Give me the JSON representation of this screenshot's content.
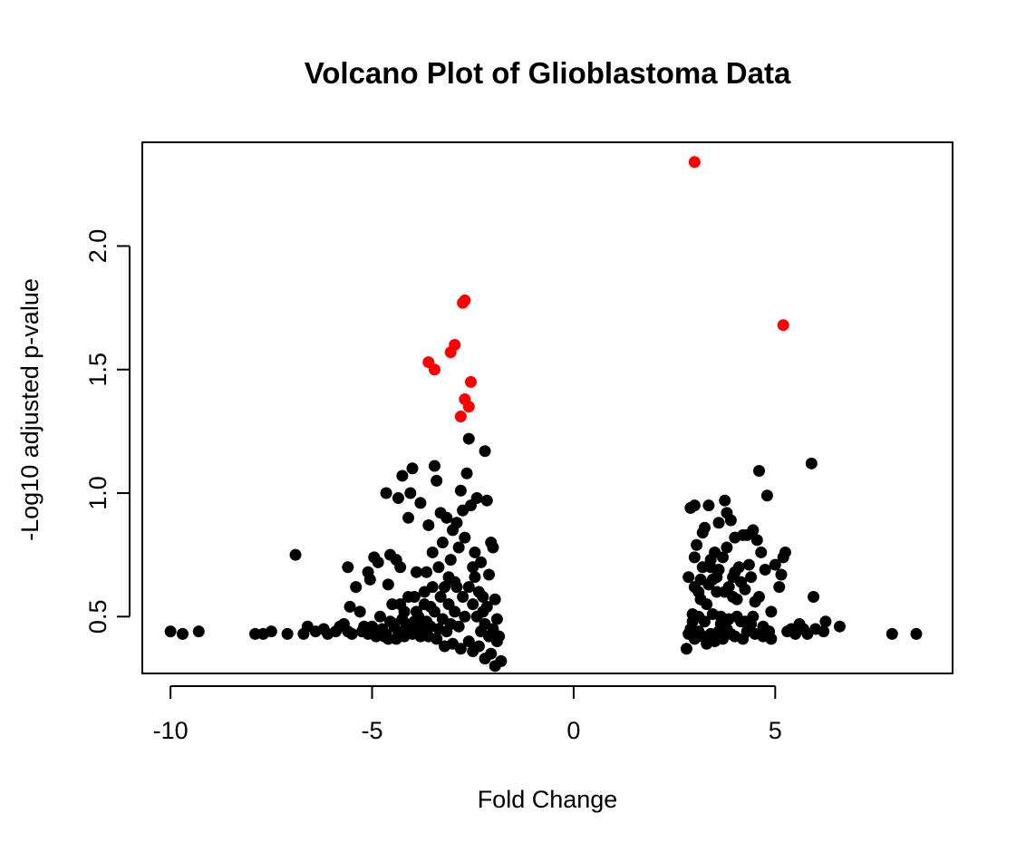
{
  "chart_data": {
    "type": "scatter",
    "title": "Volcano Plot of Glioblastoma Data",
    "xlabel": "Fold Change",
    "ylabel": "-Log10 adjusted p-value",
    "xlim": [
      -10.7,
      9.4
    ],
    "ylim": [
      0.27,
      2.42
    ],
    "xticks": [
      -10,
      -5,
      0,
      5
    ],
    "xtick_labels": [
      "-10",
      "-5",
      "0",
      "5"
    ],
    "yticks": [
      0.5,
      1.0,
      1.5,
      2.0
    ],
    "ytick_labels": [
      "0.5",
      "1.0",
      "1.5",
      "2.0"
    ],
    "grid": false,
    "legend": "none",
    "colors": {
      "significant": "#ff0000",
      "not_significant": "#000000"
    },
    "series": [
      {
        "color": "#ff0000",
        "points": [
          [
            3.0,
            2.34
          ],
          [
            5.2,
            1.68
          ],
          [
            -2.7,
            1.78
          ],
          [
            -2.75,
            1.77
          ],
          [
            -2.95,
            1.6
          ],
          [
            -3.05,
            1.57
          ],
          [
            -3.6,
            1.53
          ],
          [
            -3.45,
            1.5
          ],
          [
            -2.55,
            1.45
          ],
          [
            -2.7,
            1.38
          ],
          [
            -2.6,
            1.35
          ],
          [
            -2.8,
            1.31
          ]
        ]
      },
      {
        "color": "#000000",
        "points": [
          [
            -10.0,
            0.44
          ],
          [
            -9.7,
            0.43
          ],
          [
            -9.3,
            0.44
          ],
          [
            -7.9,
            0.43
          ],
          [
            -7.7,
            0.43
          ],
          [
            -7.5,
            0.44
          ],
          [
            -7.1,
            0.43
          ],
          [
            -6.9,
            0.75
          ],
          [
            -6.7,
            0.43
          ],
          [
            -6.6,
            0.46
          ],
          [
            -6.4,
            0.44
          ],
          [
            -6.2,
            0.45
          ],
          [
            -6.1,
            0.43
          ],
          [
            -5.9,
            0.44
          ],
          [
            -5.8,
            0.46
          ],
          [
            -5.7,
            0.47
          ],
          [
            -5.6,
            0.44
          ],
          [
            -5.5,
            0.43
          ],
          [
            -5.55,
            0.54
          ],
          [
            -5.6,
            0.7
          ],
          [
            -5.4,
            0.62
          ],
          [
            -5.3,
            0.52
          ],
          [
            -5.2,
            0.46
          ],
          [
            -5.1,
            0.68
          ],
          [
            -5.05,
            0.65
          ],
          [
            -4.95,
            0.74
          ],
          [
            -4.85,
            0.72
          ],
          [
            -4.8,
            0.5
          ],
          [
            -4.75,
            0.45
          ],
          [
            -4.7,
            0.42
          ],
          [
            -4.65,
            1.0
          ],
          [
            -4.6,
            0.63
          ],
          [
            -4.55,
            0.75
          ],
          [
            -4.5,
            0.55
          ],
          [
            -4.45,
            0.47
          ],
          [
            -4.4,
            0.73
          ],
          [
            -4.35,
            0.98
          ],
          [
            -4.3,
            0.7
          ],
          [
            -4.25,
            1.07
          ],
          [
            -4.2,
            0.52
          ],
          [
            -4.15,
            0.44
          ],
          [
            -4.1,
            0.9
          ],
          [
            -4.05,
            1.0
          ],
          [
            -4.0,
            1.1
          ],
          [
            -3.95,
            0.58
          ],
          [
            -3.9,
            0.68
          ],
          [
            -3.85,
            0.5
          ],
          [
            -3.8,
            0.96
          ],
          [
            -3.75,
            0.45
          ],
          [
            -3.7,
            0.6
          ],
          [
            -3.65,
            0.68
          ],
          [
            -3.6,
            0.87
          ],
          [
            -3.55,
            0.54
          ],
          [
            -3.5,
            0.76
          ],
          [
            -3.45,
            1.11
          ],
          [
            -3.4,
            1.05
          ],
          [
            -3.35,
            0.7
          ],
          [
            -3.3,
            0.92
          ],
          [
            -3.25,
            0.8
          ],
          [
            -3.2,
            0.62
          ],
          [
            -3.15,
            0.9
          ],
          [
            -3.1,
            0.55
          ],
          [
            -3.05,
            0.73
          ],
          [
            -3.0,
            0.85
          ],
          [
            -2.95,
            0.64
          ],
          [
            -2.9,
            0.88
          ],
          [
            -2.85,
            0.78
          ],
          [
            -2.8,
            1.01
          ],
          [
            -2.75,
            0.93
          ],
          [
            -2.7,
            0.82
          ],
          [
            -2.65,
            1.08
          ],
          [
            -2.6,
            1.22
          ],
          [
            -2.55,
            0.95
          ],
          [
            -2.5,
            0.7
          ],
          [
            -2.45,
            0.76
          ],
          [
            -2.4,
            0.98
          ],
          [
            -2.35,
            0.6
          ],
          [
            -2.3,
            0.72
          ],
          [
            -2.25,
            0.52
          ],
          [
            -2.2,
            1.17
          ],
          [
            -2.15,
            0.97
          ],
          [
            -2.1,
            0.67
          ],
          [
            -2.05,
            0.8
          ],
          [
            -2.0,
            0.78
          ],
          [
            -1.95,
            0.57
          ],
          [
            -1.9,
            0.49
          ],
          [
            -1.85,
            0.42
          ],
          [
            -1.8,
            0.32
          ],
          [
            -1.95,
            0.3
          ],
          [
            -2.05,
            0.35
          ],
          [
            -2.2,
            0.33
          ],
          [
            -2.35,
            0.38
          ],
          [
            -2.5,
            0.36
          ],
          [
            -2.6,
            0.4
          ],
          [
            -2.8,
            0.37
          ],
          [
            -3.0,
            0.39
          ],
          [
            -3.2,
            0.38
          ],
          [
            -3.4,
            0.41
          ],
          [
            -3.6,
            0.42
          ],
          [
            -3.8,
            0.42
          ],
          [
            -4.0,
            0.43
          ],
          [
            -4.2,
            0.42
          ],
          [
            -4.4,
            0.41
          ],
          [
            -4.6,
            0.41
          ],
          [
            -4.9,
            0.42
          ],
          [
            -5.1,
            0.43
          ],
          [
            -2.7,
            0.5
          ],
          [
            -2.75,
            0.58
          ],
          [
            -2.85,
            0.46
          ],
          [
            -2.95,
            0.52
          ],
          [
            -3.05,
            0.47
          ],
          [
            -3.15,
            0.44
          ],
          [
            -3.25,
            0.49
          ],
          [
            -3.35,
            0.45
          ],
          [
            -3.45,
            0.52
          ],
          [
            -3.55,
            0.46
          ],
          [
            -3.65,
            0.48
          ],
          [
            -3.75,
            0.44
          ],
          [
            -3.85,
            0.46
          ],
          [
            -3.95,
            0.48
          ],
          [
            -4.05,
            0.45
          ],
          [
            -4.15,
            0.47
          ],
          [
            -4.25,
            0.49
          ],
          [
            -4.35,
            0.44
          ],
          [
            -4.45,
            0.46
          ],
          [
            -4.55,
            0.48
          ],
          [
            -4.65,
            0.43
          ],
          [
            -4.85,
            0.44
          ],
          [
            -5.0,
            0.46
          ],
          [
            -5.25,
            0.44
          ],
          [
            -2.3,
            0.44
          ],
          [
            -2.2,
            0.47
          ],
          [
            -2.1,
            0.42
          ],
          [
            -2.4,
            0.5
          ],
          [
            -2.5,
            0.55
          ],
          [
            -2.6,
            0.62
          ],
          [
            -2.45,
            0.66
          ],
          [
            -2.25,
            0.58
          ],
          [
            -2.15,
            0.54
          ],
          [
            -2.0,
            0.45
          ],
          [
            -1.9,
            0.4
          ],
          [
            -2.9,
            0.62
          ],
          [
            -3.1,
            0.66
          ],
          [
            -3.3,
            0.58
          ],
          [
            -3.5,
            0.62
          ],
          [
            -3.7,
            0.55
          ],
          [
            -3.9,
            0.52
          ],
          [
            -4.1,
            0.58
          ],
          [
            -4.3,
            0.55
          ],
          [
            2.8,
            0.37
          ],
          [
            2.85,
            0.66
          ],
          [
            2.9,
            0.94
          ],
          [
            2.95,
            0.51
          ],
          [
            3.0,
            0.74
          ],
          [
            3.05,
            0.79
          ],
          [
            3.1,
            0.44
          ],
          [
            3.15,
            0.57
          ],
          [
            3.2,
            0.84
          ],
          [
            3.25,
            0.86
          ],
          [
            3.3,
            0.55
          ],
          [
            3.35,
            0.95
          ],
          [
            3.4,
            0.7
          ],
          [
            3.45,
            0.65
          ],
          [
            3.5,
            0.76
          ],
          [
            3.55,
            0.6
          ],
          [
            3.6,
            0.88
          ],
          [
            3.65,
            0.5
          ],
          [
            3.7,
            0.74
          ],
          [
            3.75,
            0.97
          ],
          [
            3.8,
            0.92
          ],
          [
            3.85,
            0.62
          ],
          [
            3.9,
            0.89
          ],
          [
            3.95,
            0.66
          ],
          [
            4.0,
            0.82
          ],
          [
            4.05,
            0.57
          ],
          [
            4.1,
            0.7
          ],
          [
            4.15,
            0.48
          ],
          [
            4.2,
            0.83
          ],
          [
            4.25,
            0.61
          ],
          [
            4.3,
            0.83
          ],
          [
            4.35,
            0.71
          ],
          [
            4.4,
            0.47
          ],
          [
            4.45,
            0.85
          ],
          [
            4.5,
            0.56
          ],
          [
            4.55,
            0.81
          ],
          [
            4.6,
            1.09
          ],
          [
            4.65,
            0.76
          ],
          [
            4.7,
            0.46
          ],
          [
            4.75,
            0.69
          ],
          [
            4.8,
            0.99
          ],
          [
            4.85,
            0.44
          ],
          [
            4.9,
            0.52
          ],
          [
            5.0,
            0.71
          ],
          [
            5.1,
            0.62
          ],
          [
            5.15,
            0.67
          ],
          [
            5.2,
            0.74
          ],
          [
            5.25,
            0.76
          ],
          [
            5.3,
            0.44
          ],
          [
            5.4,
            0.45
          ],
          [
            5.5,
            0.43
          ],
          [
            5.6,
            0.47
          ],
          [
            5.7,
            0.45
          ],
          [
            5.8,
            0.43
          ],
          [
            5.9,
            1.12
          ],
          [
            5.95,
            0.58
          ],
          [
            6.0,
            0.45
          ],
          [
            6.2,
            0.44
          ],
          [
            6.25,
            0.48
          ],
          [
            6.6,
            0.46
          ],
          [
            7.9,
            0.43
          ],
          [
            8.5,
            0.43
          ],
          [
            2.85,
            0.43
          ],
          [
            2.9,
            0.45
          ],
          [
            3.0,
            0.41
          ],
          [
            3.2,
            0.42
          ],
          [
            3.3,
            0.39
          ],
          [
            3.4,
            0.43
          ],
          [
            3.5,
            0.4
          ],
          [
            3.6,
            0.44
          ],
          [
            3.7,
            0.41
          ],
          [
            3.8,
            0.45
          ],
          [
            3.9,
            0.43
          ],
          [
            4.0,
            0.42
          ],
          [
            4.2,
            0.41
          ],
          [
            4.3,
            0.44
          ],
          [
            4.5,
            0.43
          ],
          [
            4.7,
            0.42
          ],
          [
            4.9,
            0.41
          ],
          [
            3.1,
            0.5
          ],
          [
            3.25,
            0.48
          ],
          [
            3.45,
            0.51
          ],
          [
            3.65,
            0.47
          ],
          [
            3.85,
            0.49
          ],
          [
            4.05,
            0.5
          ],
          [
            4.25,
            0.48
          ],
          [
            4.45,
            0.5
          ],
          [
            3.0,
            0.62
          ],
          [
            3.15,
            0.65
          ],
          [
            3.35,
            0.63
          ],
          [
            3.55,
            0.66
          ],
          [
            3.75,
            0.6
          ],
          [
            3.95,
            0.58
          ],
          [
            4.15,
            0.64
          ],
          [
            3.2,
            0.7
          ],
          [
            3.4,
            0.73
          ],
          [
            3.6,
            0.69
          ],
          [
            3.8,
            0.78
          ],
          [
            4.0,
            0.68
          ],
          [
            4.4,
            0.66
          ],
          [
            4.6,
            0.58
          ],
          [
            3.0,
            0.95
          ],
          [
            2.95,
            0.48
          ],
          [
            3.1,
            0.6
          ]
        ]
      }
    ]
  }
}
